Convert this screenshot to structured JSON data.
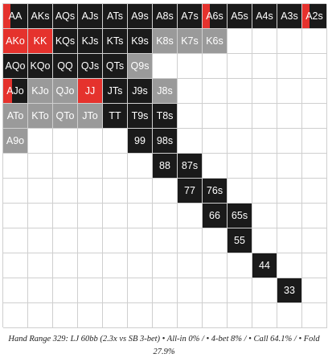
{
  "grid": {
    "labels": [
      [
        "AA",
        "AKs",
        "AQs",
        "AJs",
        "ATs",
        "A9s",
        "A8s",
        "A7s",
        "A6s",
        "A5s",
        "A4s",
        "A3s",
        "A2s"
      ],
      [
        "AKo",
        "KK",
        "KQs",
        "KJs",
        "KTs",
        "K9s",
        "K8s",
        "K7s",
        "K6s",
        "",
        "",
        "",
        ""
      ],
      [
        "AQo",
        "KQo",
        "QQ",
        "QJs",
        "QTs",
        "Q9s",
        "",
        "",
        "",
        "",
        "",
        "",
        ""
      ],
      [
        "AJo",
        "KJo",
        "QJo",
        "JJ",
        "JTs",
        "J9s",
        "J8s",
        "",
        "",
        "",
        "",
        "",
        ""
      ],
      [
        "ATo",
        "KTo",
        "QTo",
        "JTo",
        "TT",
        "T9s",
        "T8s",
        "",
        "",
        "",
        "",
        "",
        ""
      ],
      [
        "A9o",
        "",
        "",
        "",
        "",
        "99",
        "98s",
        "",
        "",
        "",
        "",
        "",
        ""
      ],
      [
        "",
        "",
        "",
        "",
        "",
        "",
        "88",
        "87s",
        "",
        "",
        "",
        "",
        ""
      ],
      [
        "",
        "",
        "",
        "",
        "",
        "",
        "",
        "77",
        "76s",
        "",
        "",
        "",
        ""
      ],
      [
        "",
        "",
        "",
        "",
        "",
        "",
        "",
        "",
        "66",
        "65s",
        "",
        "",
        ""
      ],
      [
        "",
        "",
        "",
        "",
        "",
        "",
        "",
        "",
        "",
        "55",
        "",
        "",
        ""
      ],
      [
        "",
        "",
        "",
        "",
        "",
        "",
        "",
        "",
        "",
        "",
        "44",
        "",
        ""
      ],
      [
        "",
        "",
        "",
        "",
        "",
        "",
        "",
        "",
        "",
        "",
        "",
        "33",
        ""
      ],
      [
        "",
        "",
        "",
        "",
        "",
        "",
        "",
        "",
        "",
        "",
        "",
        "",
        ""
      ]
    ],
    "actions": [
      [
        "call",
        "call",
        "call",
        "call",
        "call",
        "call",
        "call",
        "call",
        "call",
        "call",
        "call",
        "call",
        "call"
      ],
      [
        "red",
        "red",
        "call",
        "call",
        "call",
        "call",
        "gray",
        "gray",
        "gray",
        "fold",
        "fold",
        "fold",
        "fold"
      ],
      [
        "call",
        "call",
        "call",
        "call",
        "call",
        "gray",
        "fold",
        "fold",
        "fold",
        "fold",
        "fold",
        "fold",
        "fold"
      ],
      [
        "call",
        "gray",
        "gray",
        "red",
        "call",
        "call",
        "gray",
        "fold",
        "fold",
        "fold",
        "fold",
        "fold",
        "fold"
      ],
      [
        "gray",
        "gray",
        "gray",
        "gray",
        "call",
        "call",
        "call",
        "fold",
        "fold",
        "fold",
        "fold",
        "fold",
        "fold"
      ],
      [
        "gray",
        "fold",
        "fold",
        "fold",
        "fold",
        "call",
        "call",
        "fold",
        "fold",
        "fold",
        "fold",
        "fold",
        "fold"
      ],
      [
        "fold",
        "fold",
        "fold",
        "fold",
        "fold",
        "fold",
        "call",
        "call",
        "fold",
        "fold",
        "fold",
        "fold",
        "fold"
      ],
      [
        "fold",
        "fold",
        "fold",
        "fold",
        "fold",
        "fold",
        "fold",
        "call",
        "call",
        "fold",
        "fold",
        "fold",
        "fold"
      ],
      [
        "fold",
        "fold",
        "fold",
        "fold",
        "fold",
        "fold",
        "fold",
        "fold",
        "call",
        "call",
        "fold",
        "fold",
        "fold"
      ],
      [
        "fold",
        "fold",
        "fold",
        "fold",
        "fold",
        "fold",
        "fold",
        "fold",
        "fold",
        "call",
        "fold",
        "fold",
        "fold"
      ],
      [
        "fold",
        "fold",
        "fold",
        "fold",
        "fold",
        "fold",
        "fold",
        "fold",
        "fold",
        "fold",
        "call",
        "fold",
        "fold"
      ],
      [
        "fold",
        "fold",
        "fold",
        "fold",
        "fold",
        "fold",
        "fold",
        "fold",
        "fold",
        "fold",
        "fold",
        "call",
        "fold"
      ],
      [
        "fold",
        "fold",
        "fold",
        "fold",
        "fold",
        "fold",
        "fold",
        "fold",
        "fold",
        "fold",
        "fold",
        "fold",
        "fold"
      ]
    ],
    "red_share": [
      [
        0.3,
        0,
        0,
        0,
        0,
        0,
        0,
        0,
        0.3,
        0,
        0,
        0,
        0.3
      ],
      [
        0,
        0,
        0,
        0,
        0,
        0,
        0,
        0,
        0,
        0,
        0,
        0,
        0
      ],
      [
        0,
        0,
        0,
        0,
        0,
        0,
        0,
        0,
        0,
        0,
        0,
        0,
        0
      ],
      [
        0.35,
        0,
        0,
        0,
        0,
        0,
        0,
        0,
        0,
        0,
        0,
        0,
        0
      ],
      [
        0,
        0,
        0,
        0,
        0,
        0,
        0,
        0,
        0,
        0,
        0,
        0,
        0
      ],
      [
        0,
        0,
        0,
        0,
        0,
        0,
        0,
        0,
        0,
        0,
        0,
        0,
        0
      ],
      [
        0,
        0,
        0,
        0,
        0,
        0,
        0,
        0,
        0,
        0,
        0,
        0,
        0
      ],
      [
        0,
        0,
        0,
        0,
        0,
        0,
        0,
        0,
        0,
        0,
        0,
        0,
        0
      ],
      [
        0,
        0,
        0,
        0,
        0,
        0,
        0,
        0,
        0,
        0,
        0,
        0,
        0
      ],
      [
        0,
        0,
        0,
        0,
        0,
        0,
        0,
        0,
        0,
        0,
        0,
        0,
        0
      ],
      [
        0,
        0,
        0,
        0,
        0,
        0,
        0,
        0,
        0,
        0,
        0,
        0,
        0
      ],
      [
        0,
        0,
        0,
        0,
        0,
        0,
        0,
        0,
        0,
        0,
        0,
        0,
        0
      ],
      [
        0,
        0,
        0,
        0,
        0,
        0,
        0,
        0,
        0,
        0,
        0,
        0,
        0
      ]
    ]
  },
  "colors": {
    "call": "#1a1a1a",
    "gray": "#9a9a9a",
    "red": "#e5322d",
    "fold": "#ffffff"
  },
  "caption": "Hand Range 329: LJ 60bb (2.3x vs SB 3-bet) • All-in 0% / • 4-bet 8% / • Call 64.1% / • Fold 27.9%"
}
